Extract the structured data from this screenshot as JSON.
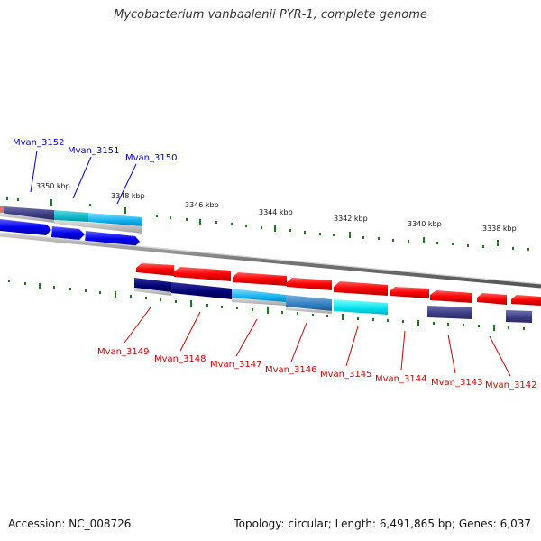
{
  "title": "Mycobacterium vanbaalenii PYR-1, complete genome",
  "footer": {
    "accession": "Accession: NC_008726",
    "summary": "Topology: circular; Length: 6,491,865 bp; Genes: 6,037"
  },
  "kbp_labels": [
    "3350 kbp",
    "3348 kbp",
    "3346 kbp",
    "3344 kbp",
    "3342 kbp",
    "3340 kbp",
    "3338 kbp"
  ],
  "top_genes": [
    "Mvan_3152",
    "Mvan_3151",
    "Mvan_3150"
  ],
  "bottom_genes": [
    "Mvan_3149",
    "Mvan_3148",
    "Mvan_3147",
    "Mvan_3146",
    "Mvan_3145",
    "Mvan_3144",
    "Mvan_3143",
    "Mvan_3142"
  ],
  "colors": {
    "forward_cds": "#0000ee",
    "reverse_cds": "#ee0000",
    "tick": "#1a7a1a",
    "backbone": "#777777"
  }
}
